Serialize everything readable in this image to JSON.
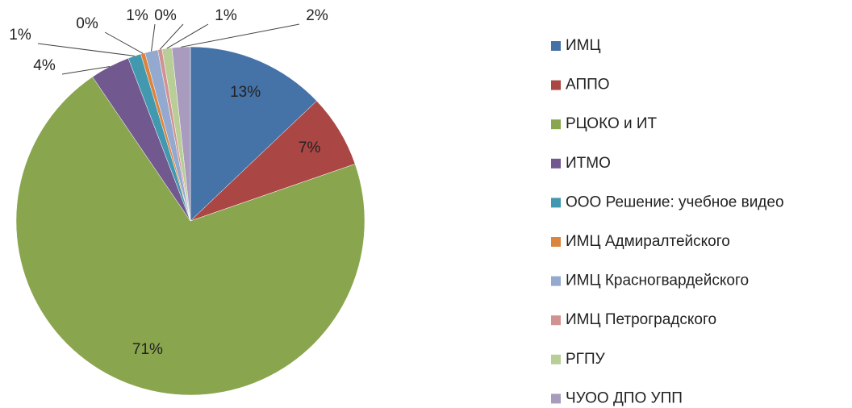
{
  "chart_data": {
    "type": "pie",
    "categories": [
      "ИМЦ",
      "АППО",
      "РЦОКО и ИТ",
      "ИТМО",
      "ООО Решение: учебное видео",
      "ИМЦ Адмиралтейского",
      "ИМЦ Красногвардейского",
      "ИМЦ Петроградского",
      "РГПУ",
      "ЧУОО ДПО УПП"
    ],
    "values": [
      12.9,
      6.8,
      70.8,
      3.7,
      1.2,
      0.4,
      1.2,
      0.4,
      0.9,
      1.7
    ],
    "value_labels": [
      "13%",
      "7%",
      "71%",
      "4%",
      "1%",
      "0%",
      "1%",
      "0%",
      "1%",
      "2%"
    ],
    "colors": [
      "#4572A7",
      "#AA4643",
      "#89A54E",
      "#71588F",
      "#4198AF",
      "#DB843D",
      "#93A9CF",
      "#D19392",
      "#B9CD96",
      "#A99BBD"
    ],
    "legend": "right"
  }
}
